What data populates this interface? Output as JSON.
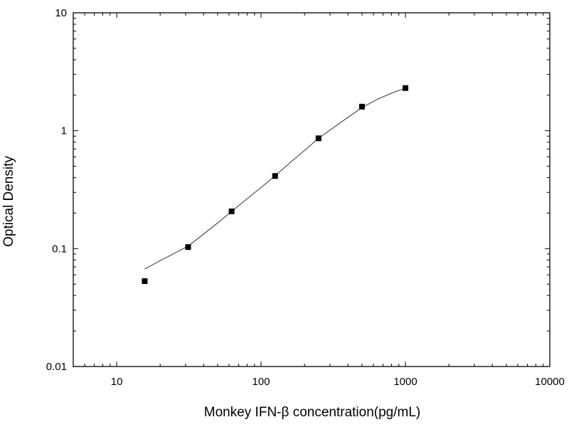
{
  "chart_data": {
    "type": "scatter",
    "title": "",
    "xlabel": "Monkey IFN-β  concentration(pg/mL)",
    "ylabel": "Optical Density",
    "x_scale": "log",
    "y_scale": "log",
    "xlim": [
      5,
      10000
    ],
    "ylim": [
      0.01,
      10
    ],
    "x_ticks": [
      10,
      100,
      1000,
      10000
    ],
    "x_tick_labels": [
      "10",
      "100",
      "1000",
      "10000"
    ],
    "y_ticks": [
      0.01,
      0.1,
      1,
      10
    ],
    "y_tick_labels": [
      "0.01",
      "0.1",
      "1",
      "10"
    ],
    "grid": false,
    "legend": "none",
    "marker_color": "#000000",
    "series": [
      {
        "x": [
          15.625,
          31.25,
          62.5,
          125,
          250,
          500,
          1000
        ],
        "y": [
          0.053,
          0.103,
          0.207,
          0.413,
          0.862,
          1.6,
          2.3
        ]
      }
    ],
    "fit_curve": {
      "x": [
        15.625,
        20,
        25,
        31.25,
        40,
        50,
        62.5,
        80,
        100,
        125,
        160,
        200,
        250,
        320,
        400,
        500,
        640,
        800,
        1000
      ],
      "y": [
        0.067,
        0.079,
        0.091,
        0.105,
        0.133,
        0.165,
        0.207,
        0.265,
        0.33,
        0.414,
        0.54,
        0.68,
        0.862,
        1.07,
        1.3,
        1.57,
        1.85,
        2.08,
        2.3
      ]
    }
  }
}
